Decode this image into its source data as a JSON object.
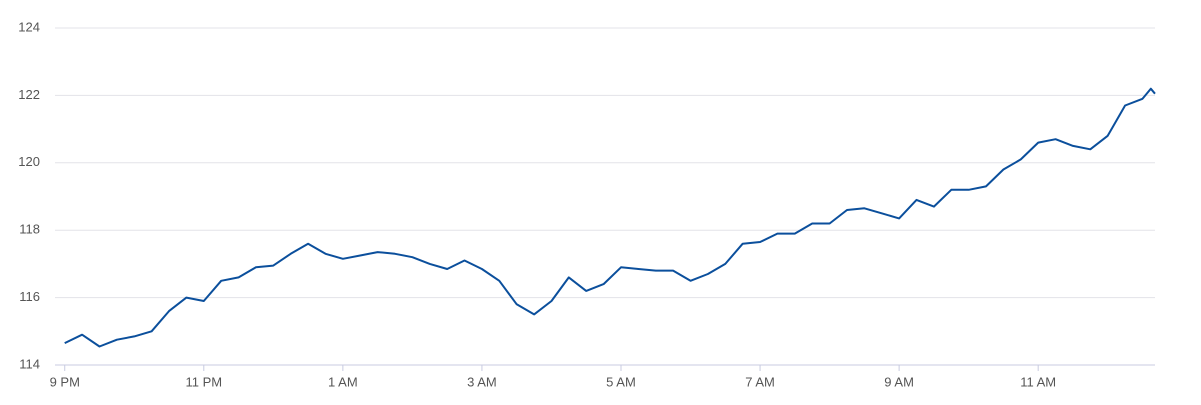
{
  "chart_data": {
    "type": "line",
    "xlim": [
      -0.14,
      15.68
    ],
    "ylim": [
      114,
      124
    ],
    "yticks": [
      114,
      116,
      118,
      120,
      122,
      124
    ],
    "xticks": [
      {
        "value": 0,
        "label": "9 PM"
      },
      {
        "value": 2,
        "label": "11 PM"
      },
      {
        "value": 4,
        "label": "1 AM"
      },
      {
        "value": 6,
        "label": "3 AM"
      },
      {
        "value": 8,
        "label": "5 AM"
      },
      {
        "value": 10,
        "label": "7 AM"
      },
      {
        "value": 12,
        "label": "9 AM"
      },
      {
        "value": 14,
        "label": "11 AM"
      }
    ],
    "grid": true,
    "x": [
      0,
      0.25,
      0.5,
      0.75,
      1,
      1.25,
      1.5,
      1.75,
      2,
      2.25,
      2.5,
      2.75,
      3,
      3.25,
      3.5,
      3.75,
      4,
      4.25,
      4.5,
      4.75,
      5,
      5.25,
      5.5,
      5.75,
      6,
      6.25,
      6.5,
      6.75,
      7,
      7.25,
      7.5,
      7.75,
      8,
      8.25,
      8.5,
      8.75,
      9,
      9.25,
      9.5,
      9.75,
      10,
      10.25,
      10.5,
      10.75,
      11,
      11.25,
      11.5,
      11.75,
      12,
      12.25,
      12.5,
      12.75,
      13,
      13.25,
      13.5,
      13.75,
      14,
      14.25,
      14.5,
      14.75,
      15,
      15.25,
      15.5,
      15.62,
      15.68
    ],
    "series": [
      {
        "color": "#0b4f9c",
        "values": [
          114.65,
          114.9,
          114.55,
          114.75,
          114.85,
          115.0,
          115.6,
          116.0,
          115.9,
          116.5,
          116.6,
          116.9,
          116.95,
          117.3,
          117.6,
          117.3,
          117.15,
          117.25,
          117.35,
          117.3,
          117.2,
          117.0,
          116.85,
          117.1,
          116.85,
          116.5,
          115.8,
          115.5,
          115.9,
          116.6,
          116.2,
          116.4,
          116.9,
          116.85,
          116.8,
          116.8,
          116.5,
          116.7,
          117.0,
          117.6,
          117.65,
          117.9,
          117.9,
          118.2,
          118.2,
          118.6,
          118.65,
          118.5,
          118.35,
          118.9,
          118.7,
          119.2,
          119.2,
          119.3,
          119.8,
          120.1,
          120.6,
          120.7,
          120.5,
          120.4,
          120.8,
          121.7,
          121.9,
          122.2,
          122.05
        ]
      }
    ]
  }
}
